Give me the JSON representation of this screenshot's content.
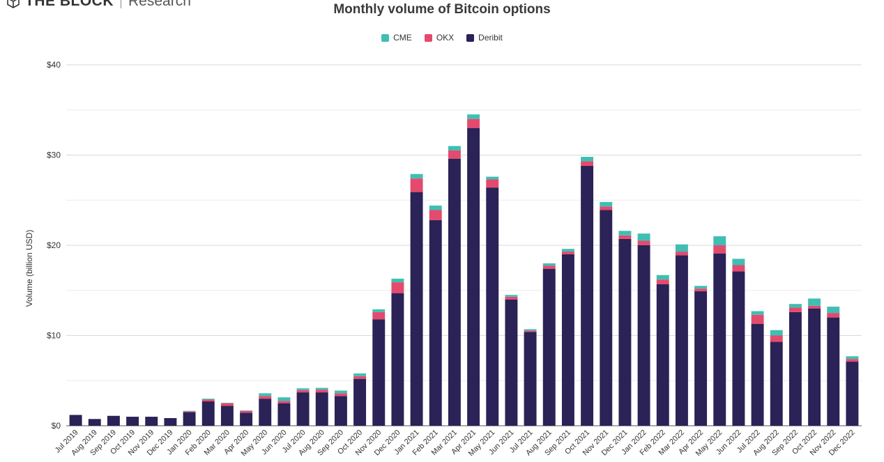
{
  "brand": {
    "name": "THE BLOCK",
    "sub": "Research"
  },
  "chart_data": {
    "type": "bar",
    "stacked": true,
    "title": "Monthly volume of Bitcoin options",
    "ylabel": "Volume (billion USD)",
    "xlabel": "",
    "ylim": [
      0,
      40
    ],
    "yticks": [
      0,
      10,
      20,
      30,
      40
    ],
    "ytick_labels": [
      "$0",
      "$10",
      "$20",
      "$30",
      "$40"
    ],
    "grid": true,
    "legend_position": "top-center",
    "categories": [
      "Jul 2019",
      "Aug 2019",
      "Sep 2019",
      "Oct 2019",
      "Nov 2019",
      "Dec 2019",
      "Jan 2020",
      "Feb 2020",
      "Mar 2020",
      "Apr 2020",
      "May 2020",
      "Jun 2020",
      "Jul 2020",
      "Aug 2020",
      "Sep 2020",
      "Oct 2020",
      "Nov 2020",
      "Dec 2020",
      "Jan 2021",
      "Feb 2021",
      "Mar 2021",
      "Apr 2021",
      "May 2021",
      "Jun 2021",
      "Jul 2021",
      "Aug 2021",
      "Sep 2021",
      "Oct 2021",
      "Nov 2021",
      "Dec 2021",
      "Jan 2022",
      "Feb 2022",
      "Mar 2022",
      "Apr 2022",
      "May 2022",
      "Jun 2022",
      "Jul 2022",
      "Aug 2022",
      "Sep 2022",
      "Oct 2022",
      "Nov 2022",
      "Dec 2022"
    ],
    "series": [
      {
        "name": "Deribit",
        "color": "#2b2257",
        "values": [
          1.2,
          0.75,
          1.1,
          1.0,
          1.0,
          0.85,
          1.5,
          2.7,
          2.2,
          1.45,
          3.0,
          2.5,
          3.7,
          3.7,
          3.3,
          5.2,
          11.8,
          14.7,
          25.9,
          22.8,
          29.6,
          33.0,
          26.4,
          14.0,
          10.4,
          17.4,
          19.0,
          28.8,
          23.9,
          20.7,
          20.0,
          15.7,
          18.9,
          14.9,
          19.1,
          17.1,
          11.3,
          9.3,
          12.6,
          13.0,
          12.0,
          7.1
        ]
      },
      {
        "name": "OKX",
        "color": "#e54a6e",
        "values": [
          0,
          0,
          0,
          0,
          0,
          0,
          0.1,
          0.2,
          0.3,
          0.2,
          0.3,
          0.25,
          0.25,
          0.3,
          0.3,
          0.3,
          0.8,
          1.2,
          1.5,
          1.1,
          0.9,
          1.0,
          0.9,
          0.3,
          0.15,
          0.35,
          0.3,
          0.5,
          0.4,
          0.4,
          0.5,
          0.5,
          0.4,
          0.3,
          0.9,
          0.7,
          1.0,
          0.7,
          0.5,
          0.3,
          0.5,
          0.3
        ]
      },
      {
        "name": "CME",
        "color": "#3fbfb3",
        "values": [
          0,
          0,
          0,
          0,
          0,
          0,
          0.05,
          0.1,
          0.05,
          0.05,
          0.3,
          0.4,
          0.2,
          0.2,
          0.3,
          0.3,
          0.3,
          0.4,
          0.5,
          0.5,
          0.5,
          0.5,
          0.3,
          0.2,
          0.15,
          0.25,
          0.3,
          0.5,
          0.5,
          0.5,
          0.8,
          0.5,
          0.8,
          0.3,
          1.0,
          0.7,
          0.4,
          0.6,
          0.4,
          0.8,
          0.7,
          0.3
        ]
      }
    ],
    "legend_order": [
      "CME",
      "OKX",
      "Deribit"
    ]
  }
}
